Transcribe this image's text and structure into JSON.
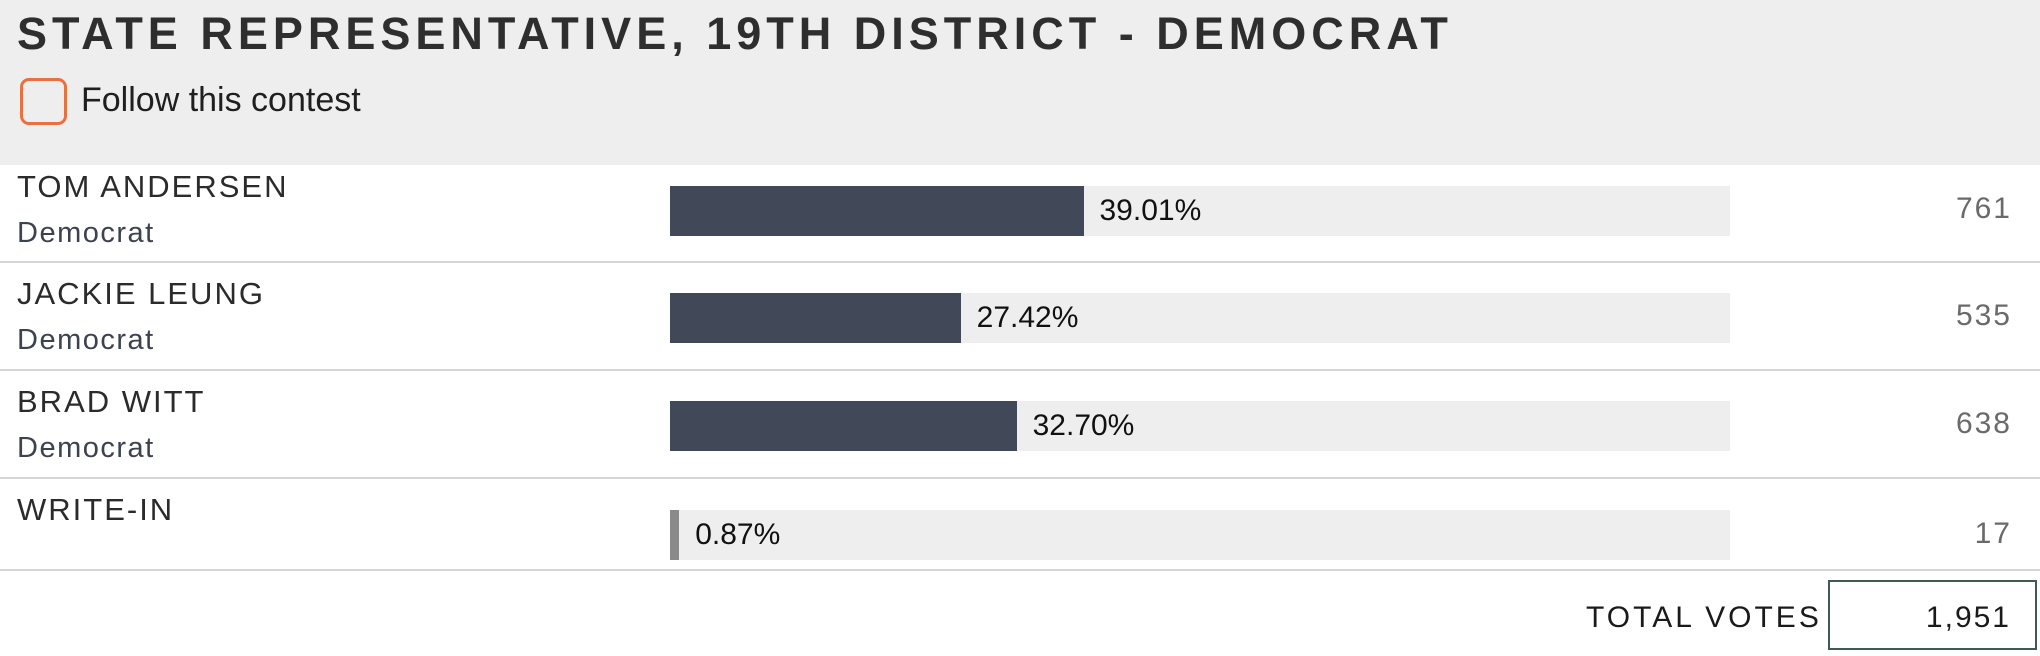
{
  "contest": {
    "title": "STATE REPRESENTATIVE, 19TH DISTRICT - DEMOCRAT",
    "follow_label": "Follow this contest",
    "follow_checked": false
  },
  "colors": {
    "accent_checkbox": "#e9703f",
    "bar_fill": "#414858",
    "bar_fill_writein": "#8a8a8a",
    "bar_track": "#eeeeee",
    "header_bg": "#eeeeee"
  },
  "candidates": [
    {
      "name": "TOM ANDERSEN",
      "party": "Democrat",
      "percent_label": "39.01%",
      "percent": 39.01,
      "votes": "761"
    },
    {
      "name": "JACKIE LEUNG",
      "party": "Democrat",
      "percent_label": "27.42%",
      "percent": 27.42,
      "votes": "535"
    },
    {
      "name": "BRAD WITT",
      "party": "Democrat",
      "percent_label": "32.70%",
      "percent": 32.7,
      "votes": "638"
    },
    {
      "name": "WRITE-IN",
      "party": "",
      "percent_label": "0.87%",
      "percent": 0.87,
      "votes": "17"
    }
  ],
  "totals": {
    "label": "TOTAL VOTES",
    "value": "1,951"
  }
}
